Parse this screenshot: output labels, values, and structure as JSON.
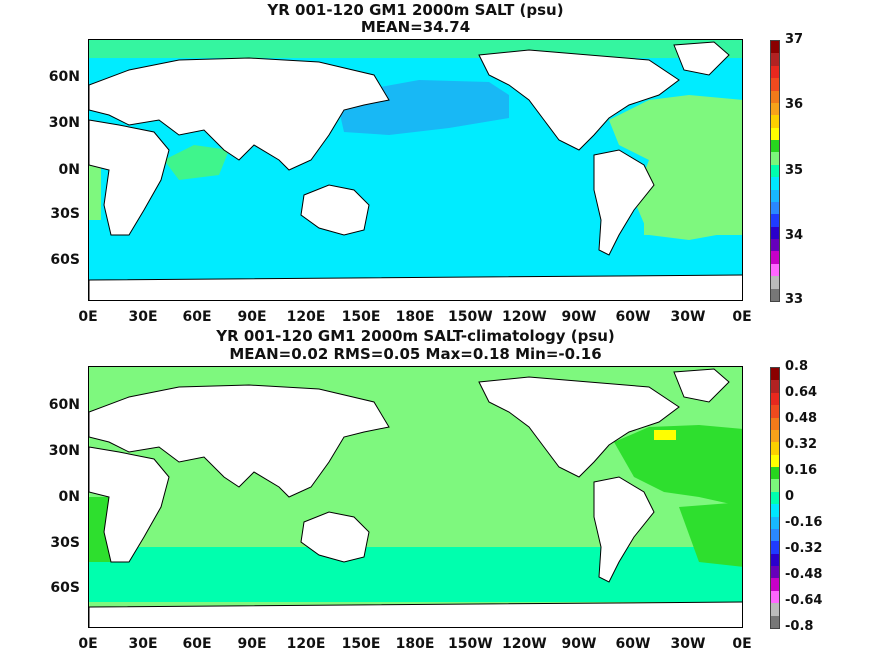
{
  "panels": [
    {
      "title_line1": "YR 001-120 GM1 2000m SALT (psu)",
      "title_line2": "MEAN=34.74",
      "colorbar_labels": [
        "37",
        "36",
        "35",
        "34",
        "33"
      ],
      "colorbar_colors": [
        "#8b0000",
        "#b22222",
        "#e8281e",
        "#f04a1e",
        "#f27a1a",
        "#f7a21a",
        "#fbd000",
        "#ffff00",
        "#27d51e",
        "#7bf77b",
        "#00ffae",
        "#00e8ff",
        "#18b8ff",
        "#2a88ff",
        "#1f3bff",
        "#2a00cc",
        "#6600bb",
        "#c800c8",
        "#ff66ff",
        "#bbbbbb",
        "#777777"
      ],
      "colors": {
        "ocean_main": "#00ecff",
        "north_pacific": "#18b8f5",
        "atlantic": "#7ef87e",
        "southern": "#00e8ff",
        "indian_patch": "#3ff58c",
        "arctic": "#35f5a0"
      }
    },
    {
      "title_line1": "YR 001-120 GM1 2000m SALT-climatology (psu)",
      "title_line2": "MEAN=0.02   RMS=0.05   Max=0.18   Min=-0.16",
      "colorbar_labels": [
        "0.8",
        "0.64",
        "0.48",
        "0.32",
        "0.16",
        "0",
        "-0.16",
        "-0.32",
        "-0.48",
        "-0.64",
        "-0.8"
      ],
      "colorbar_colors": [
        "#8b0000",
        "#b22222",
        "#e8281e",
        "#f04a1e",
        "#f27a1a",
        "#f7a21a",
        "#fbd000",
        "#ffff00",
        "#27d51e",
        "#7bf77b",
        "#00ffae",
        "#00e8ff",
        "#18b8ff",
        "#2a88ff",
        "#1f3bff",
        "#2a00cc",
        "#6600bb",
        "#c800c8",
        "#ff66ff",
        "#bbbbbb",
        "#777777"
      ],
      "colors": {
        "ocean_main": "#7ef87e",
        "north_atlantic": "#2edf2e",
        "anomaly_peak": "#ffff00",
        "southern": "#00ffae",
        "arctic": "#7ef87e"
      }
    }
  ],
  "lat_labels": [
    "60N",
    "30N",
    "0N",
    "30S",
    "60S"
  ],
  "lon_labels": [
    "0E",
    "30E",
    "60E",
    "90E",
    "120E",
    "150E",
    "180E",
    "150W",
    "120W",
    "90W",
    "60W",
    "30W",
    "0E"
  ]
}
